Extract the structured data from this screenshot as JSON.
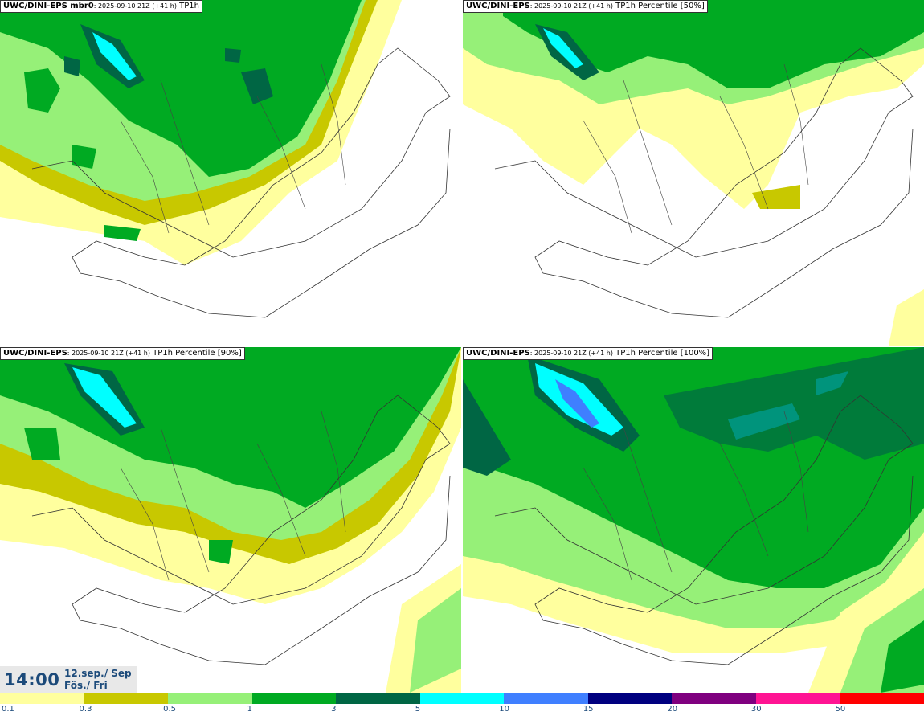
{
  "panels": [
    {
      "model": "UWC/DINI-EPS mbr0",
      "run": ": 2025-09-10 21Z (+41 h)",
      "field": " TP1h"
    },
    {
      "model": "UWC/DINI-EPS",
      "run": ": 2025-09-10 21Z (+41 h)",
      "field": " TP1h Percentile [50%]"
    },
    {
      "model": "UWC/DINI-EPS",
      "run": ": 2025-09-10 21Z (+41 h)",
      "field": " TP1h Percentile [90%]"
    },
    {
      "model": "UWC/DINI-EPS",
      "run": ": 2025-09-10 21Z (+41 h)",
      "field": " TP1h Percentile [100%]"
    }
  ],
  "time": {
    "hour": "14:00",
    "date": "12.sep./ Sep",
    "weekday": "Fös./ Fri"
  },
  "legend": {
    "labels": [
      "0.1",
      "0.3",
      "0.5",
      "1",
      "3",
      "5",
      "10",
      "15",
      "20",
      "30",
      "50"
    ],
    "colors": [
      "#ffff9e",
      "#c8c800",
      "#96f078",
      "#00aa22",
      "#006644",
      "#00ffff",
      "#3f7fff",
      "#00007f",
      "#7f007f",
      "#ff1493",
      "#ff0000"
    ]
  },
  "colors": {
    "light": "#ffff9e",
    "olive": "#c8c800",
    "lime": "#96f078",
    "green": "#00aa22",
    "dark": "#006644",
    "cyan": "#00ffff",
    "blue": "#3f7fff"
  }
}
